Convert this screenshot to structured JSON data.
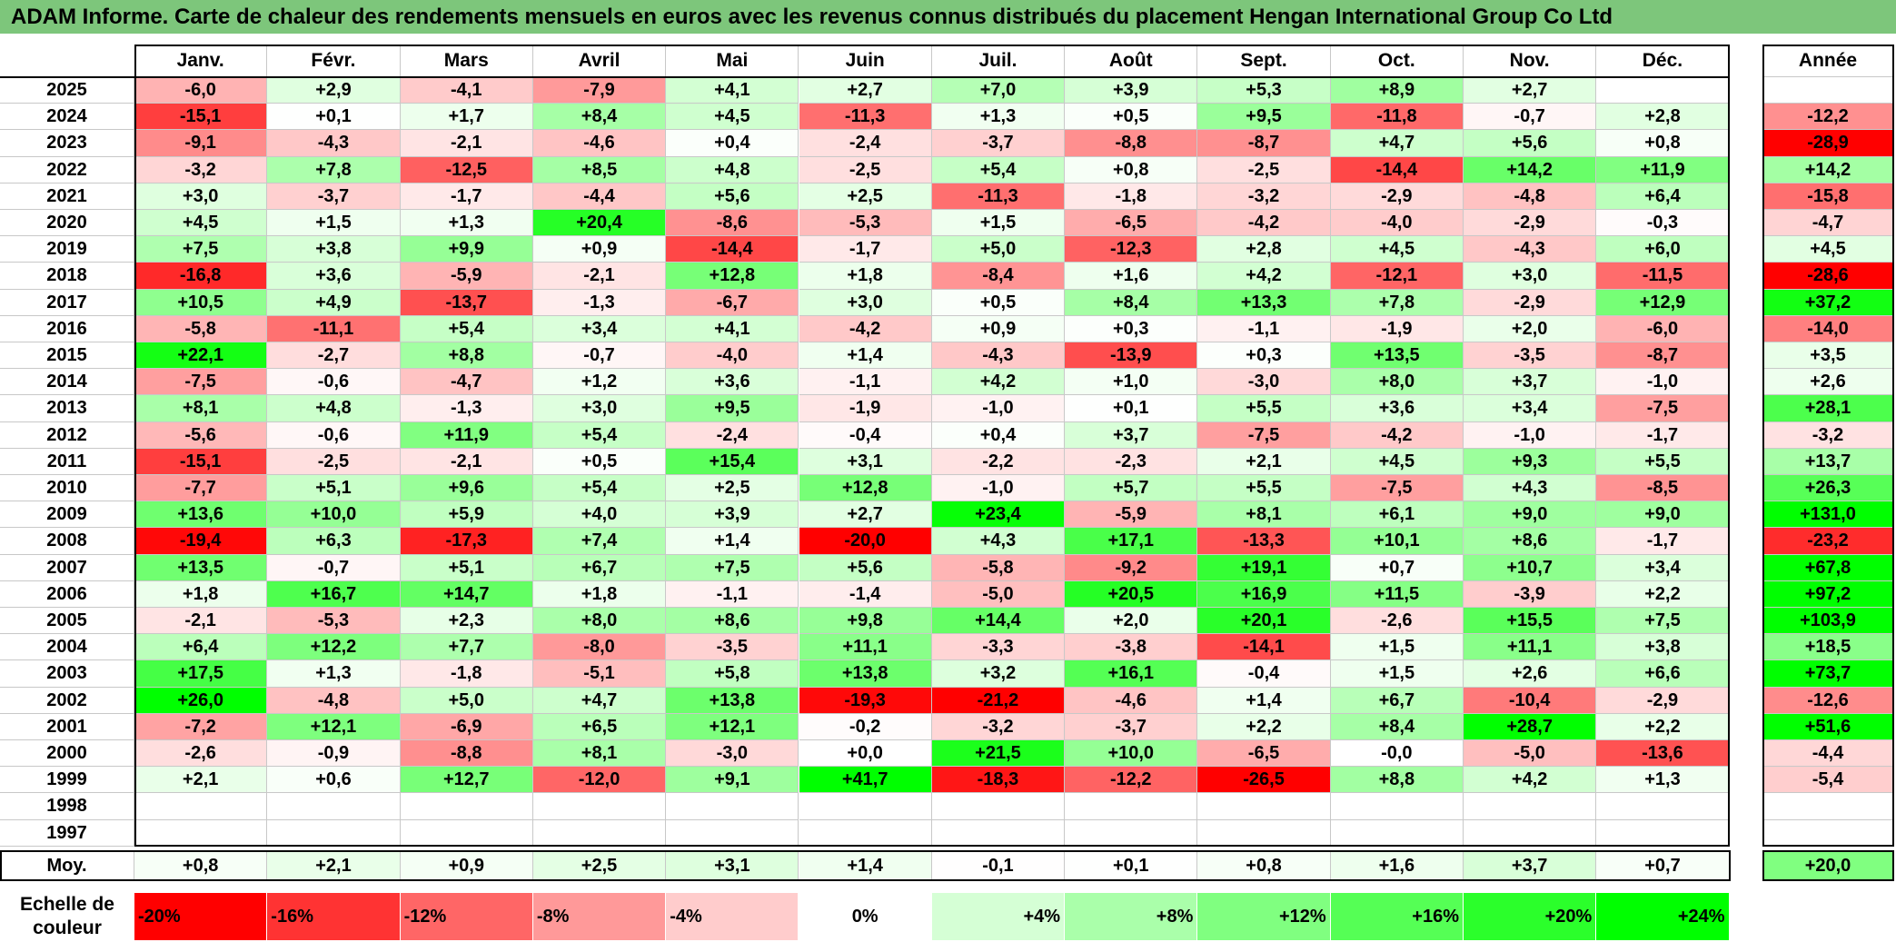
{
  "title": "ADAM Informe. Carte de chaleur des rendements mensuels en euros avec les revenus connus distribués du placement Hengan International Group Co Ltd",
  "chart_data": {
    "type": "heatmap",
    "title": "ADAM Informe. Carte de chaleur des rendements mensuels en euros avec les revenus connus distribués du placement Hengan International Group Co Ltd",
    "months": [
      "Janv.",
      "Févr.",
      "Mars",
      "Avril",
      "Mai",
      "Juin",
      "Juil.",
      "Août",
      "Sept.",
      "Oct.",
      "Nov.",
      "Déc."
    ],
    "year_header": "Année",
    "avg_label": "Moy.",
    "rows": [
      {
        "year": "2025",
        "values": [
          -6.0,
          2.9,
          -4.1,
          -7.9,
          4.1,
          2.7,
          7.0,
          3.9,
          5.3,
          8.9,
          2.7,
          null
        ],
        "annual": null
      },
      {
        "year": "2024",
        "values": [
          -15.1,
          0.1,
          1.7,
          8.4,
          4.5,
          -11.3,
          1.3,
          0.5,
          9.5,
          -11.8,
          -0.7,
          2.8
        ],
        "annual": -12.2
      },
      {
        "year": "2023",
        "values": [
          -9.1,
          -4.3,
          -2.1,
          -4.6,
          0.4,
          -2.4,
          -3.7,
          -8.8,
          -8.7,
          4.7,
          5.6,
          0.8
        ],
        "annual": -28.9
      },
      {
        "year": "2022",
        "values": [
          -3.2,
          7.8,
          -12.5,
          8.5,
          4.8,
          -2.5,
          5.4,
          0.8,
          -2.5,
          -14.4,
          14.2,
          11.9
        ],
        "annual": 14.2
      },
      {
        "year": "2021",
        "values": [
          3.0,
          -3.7,
          -1.7,
          -4.4,
          5.6,
          2.5,
          -11.3,
          -1.8,
          -3.2,
          -2.9,
          -4.8,
          6.4
        ],
        "annual": -15.8
      },
      {
        "year": "2020",
        "values": [
          4.5,
          1.5,
          1.3,
          20.4,
          -8.6,
          -5.3,
          1.5,
          -6.5,
          -4.2,
          -4.0,
          -2.9,
          -0.3
        ],
        "annual": -4.7
      },
      {
        "year": "2019",
        "values": [
          7.5,
          3.8,
          9.9,
          0.9,
          -14.4,
          -1.7,
          5.0,
          -12.3,
          2.8,
          4.5,
          -4.3,
          6.0
        ],
        "annual": 4.5
      },
      {
        "year": "2018",
        "values": [
          -16.8,
          3.6,
          -5.9,
          -2.1,
          12.8,
          1.8,
          -8.4,
          1.6,
          4.2,
          -12.1,
          3.0,
          -11.5
        ],
        "annual": -28.6
      },
      {
        "year": "2017",
        "values": [
          10.5,
          4.9,
          -13.7,
          -1.3,
          -6.7,
          3.0,
          0.5,
          8.4,
          13.3,
          7.8,
          -2.9,
          12.9
        ],
        "annual": 37.2
      },
      {
        "year": "2016",
        "values": [
          -5.8,
          -11.1,
          5.4,
          3.4,
          4.1,
          -4.2,
          0.9,
          0.3,
          -1.1,
          -1.9,
          2.0,
          -6.0
        ],
        "annual": -14.0
      },
      {
        "year": "2015",
        "values": [
          22.1,
          -2.7,
          8.8,
          -0.7,
          -4.0,
          1.4,
          -4.3,
          -13.9,
          0.3,
          13.5,
          -3.5,
          -8.7
        ],
        "annual": 3.5
      },
      {
        "year": "2014",
        "values": [
          -7.5,
          -0.6,
          -4.7,
          1.2,
          3.6,
          -1.1,
          4.2,
          1.0,
          -3.0,
          8.0,
          3.7,
          -1.0
        ],
        "annual": 2.6
      },
      {
        "year": "2013",
        "values": [
          8.1,
          4.8,
          -1.3,
          3.0,
          9.5,
          -1.9,
          -1.0,
          0.1,
          5.5,
          3.6,
          3.4,
          -7.5
        ],
        "annual": 28.1
      },
      {
        "year": "2012",
        "values": [
          -5.6,
          -0.6,
          11.9,
          5.4,
          -2.4,
          -0.4,
          0.4,
          3.7,
          -7.5,
          -4.2,
          -1.0,
          -1.7
        ],
        "annual": -3.2
      },
      {
        "year": "2011",
        "values": [
          -15.1,
          -2.5,
          -2.1,
          0.5,
          15.4,
          3.1,
          -2.2,
          -2.3,
          2.1,
          4.5,
          9.3,
          5.5
        ],
        "annual": 13.7
      },
      {
        "year": "2010",
        "values": [
          -7.7,
          5.1,
          9.6,
          5.4,
          2.5,
          12.8,
          -1.0,
          5.7,
          5.5,
          -7.5,
          4.3,
          -8.5
        ],
        "annual": 26.3
      },
      {
        "year": "2009",
        "values": [
          13.6,
          10.0,
          5.9,
          4.0,
          3.9,
          2.7,
          23.4,
          -5.9,
          8.1,
          6.1,
          9.0,
          9.0
        ],
        "annual": 131.0
      },
      {
        "year": "2008",
        "values": [
          -19.4,
          6.3,
          -17.3,
          7.4,
          1.4,
          -20.0,
          4.3,
          17.1,
          -13.3,
          10.1,
          8.6,
          -1.7
        ],
        "annual": -23.2
      },
      {
        "year": "2007",
        "values": [
          13.5,
          -0.7,
          5.1,
          6.7,
          7.5,
          5.6,
          -5.8,
          -9.2,
          19.1,
          0.7,
          10.7,
          3.4
        ],
        "annual": 67.8
      },
      {
        "year": "2006",
        "values": [
          1.8,
          16.7,
          14.7,
          1.8,
          -1.1,
          -1.4,
          -5.0,
          20.5,
          16.9,
          11.5,
          -3.9,
          2.2
        ],
        "annual": 97.2
      },
      {
        "year": "2005",
        "values": [
          -2.1,
          -5.3,
          2.3,
          8.0,
          8.6,
          9.8,
          14.4,
          2.0,
          20.1,
          -2.6,
          15.5,
          7.5
        ],
        "annual": 103.9
      },
      {
        "year": "2004",
        "values": [
          6.4,
          12.2,
          7.7,
          -8.0,
          -3.5,
          11.1,
          -3.3,
          -3.8,
          -14.1,
          1.5,
          11.1,
          3.8
        ],
        "annual": 18.5
      },
      {
        "year": "2003",
        "values": [
          17.5,
          1.3,
          -1.8,
          -5.1,
          5.8,
          13.8,
          3.2,
          16.1,
          -0.4,
          1.5,
          2.6,
          6.6
        ],
        "annual": 73.7
      },
      {
        "year": "2002",
        "values": [
          26.0,
          -4.8,
          5.0,
          4.7,
          13.8,
          -19.3,
          -21.2,
          -4.6,
          1.4,
          6.7,
          -10.4,
          -2.9
        ],
        "annual": -12.6
      },
      {
        "year": "2001",
        "values": [
          -7.2,
          12.1,
          -6.9,
          6.5,
          12.1,
          -0.2,
          -3.2,
          -3.7,
          2.2,
          8.4,
          28.7,
          2.2
        ],
        "annual": 51.6
      },
      {
        "year": "2000",
        "values": [
          -2.6,
          -0.9,
          -8.8,
          8.1,
          -3.0,
          0.0,
          21.5,
          10.0,
          -6.5,
          -0.0,
          -5.0,
          -13.6
        ],
        "annual": -4.4
      },
      {
        "year": "1999",
        "values": [
          2.1,
          0.6,
          12.7,
          -12.0,
          9.1,
          41.7,
          -18.3,
          -12.2,
          -26.5,
          8.8,
          4.2,
          1.3
        ],
        "annual": -5.4
      },
      {
        "year": "1998",
        "values": [
          null,
          null,
          null,
          null,
          null,
          null,
          null,
          null,
          null,
          null,
          null,
          null
        ],
        "annual": null
      },
      {
        "year": "1997",
        "values": [
          null,
          null,
          null,
          null,
          null,
          null,
          null,
          null,
          null,
          null,
          null,
          null
        ],
        "annual": null
      }
    ],
    "averages": {
      "values": [
        0.8,
        2.1,
        0.9,
        2.5,
        3.1,
        1.4,
        -0.1,
        0.1,
        0.8,
        1.6,
        3.7,
        0.7
      ],
      "annual": 20.0
    },
    "scale": {
      "label": "Echelle de couleur",
      "steps": [
        {
          "label": "-20%",
          "value": -20,
          "align": "left"
        },
        {
          "label": "-16%",
          "value": -16,
          "align": "left"
        },
        {
          "label": "-12%",
          "value": -12,
          "align": "left"
        },
        {
          "label": "-8%",
          "value": -8,
          "align": "left"
        },
        {
          "label": "-4%",
          "value": -4,
          "align": "left"
        },
        {
          "label": "0%",
          "value": 0,
          "align": "center"
        },
        {
          "label": "+4%",
          "value": 4,
          "align": "right"
        },
        {
          "label": "+8%",
          "value": 8,
          "align": "right"
        },
        {
          "label": "+12%",
          "value": 12,
          "align": "right"
        },
        {
          "label": "+16%",
          "value": 16,
          "align": "right"
        },
        {
          "label": "+20%",
          "value": 20,
          "align": "right"
        },
        {
          "label": "+24%",
          "value": 24,
          "align": "right"
        }
      ]
    },
    "colors": {
      "negative_max": "#ff0000",
      "neutral": "#ffffff",
      "positive_max": "#00ff00",
      "header": "#7dc67b"
    },
    "color_limits": {
      "monthly": [
        -20,
        24
      ],
      "annual": [
        -28,
        40
      ]
    }
  }
}
